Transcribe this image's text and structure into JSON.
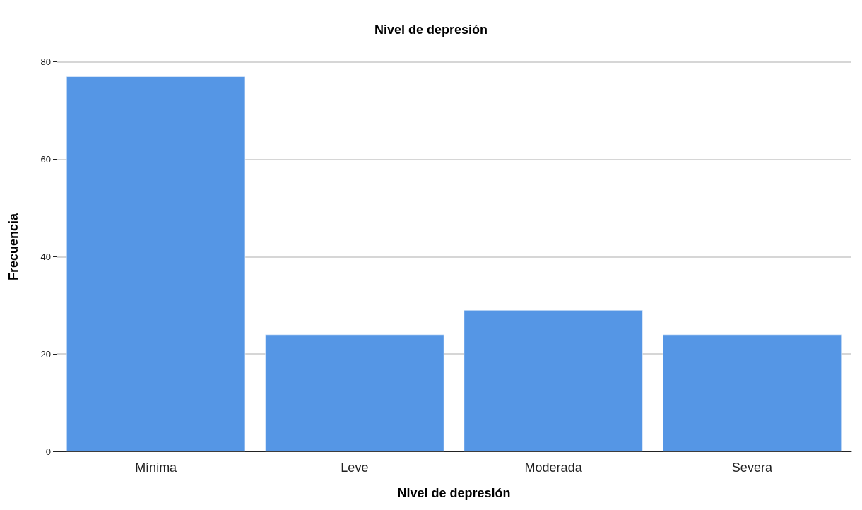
{
  "chart_data": {
    "type": "bar",
    "title": "Nivel de depresión",
    "xlabel": "Nivel de depresión",
    "ylabel": "Frecuencia",
    "categories": [
      "Mínima",
      "Leve",
      "Moderada",
      "Severa"
    ],
    "values": [
      77,
      24,
      29,
      24
    ],
    "color": "#5596e5",
    "ylim": [
      0,
      84
    ],
    "yticks": [
      0,
      20,
      40,
      60,
      80
    ],
    "grid": "y"
  }
}
